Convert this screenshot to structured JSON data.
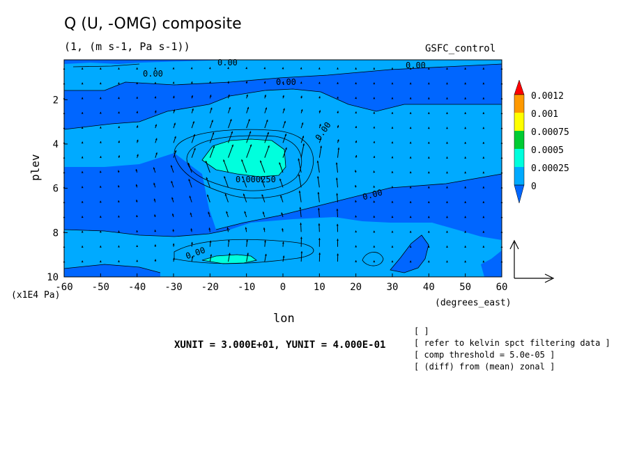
{
  "header": {
    "title": "Q (U, -OMG) composite",
    "subtitle": "(1, (m s-1, Pa s-1))",
    "dataset": "GSFC_control"
  },
  "notes": [
    "[  ]",
    "[ refer to kelvin spct filtering data ]",
    "[ comp threshold = 5.0e-05 ]",
    "[ (diff) from (mean) zonal ]"
  ],
  "units_line": "XUNIT = 3.000E+01, YUNIT = 4.000E-01",
  "chart_data": {
    "type": "heatmap",
    "title": "Q (U, -OMG) composite",
    "xlabel": "lon",
    "x_units": "(degrees_east)",
    "ylabel": "plev",
    "y_units": "(x1E4 Pa)",
    "xlim": [
      -60,
      60
    ],
    "ylim": [
      10,
      0.2
    ],
    "x_ticks": [
      -60,
      -50,
      -40,
      -30,
      -20,
      -10,
      0,
      10,
      20,
      30,
      40,
      50,
      60
    ],
    "y_ticks": [
      2,
      4,
      6,
      8,
      10
    ],
    "colorbar": {
      "levels": [
        "0.0012",
        "0.001",
        "0.00075",
        "0.0005",
        "0.00025",
        "0"
      ],
      "colors": [
        "#ff0000",
        "#ff9900",
        "#ffff00",
        "#00cc33",
        "#00ffdd",
        "#00aaff",
        "#0066ff",
        "#0033ff"
      ]
    },
    "contour_labels": [
      "0.00",
      "0.00",
      "0.00",
      "0.00",
      "0.00",
      "0.000250",
      "0.00",
      "0.00"
    ],
    "approx_max_regions": [
      {
        "lon": -10,
        "plev": 4.8,
        "value": 0.0003
      },
      {
        "lon": -15,
        "plev": 9.3,
        "value": 0.00025
      }
    ],
    "vector_reference": {
      "x_unit": 30,
      "y_unit": 0.4
    }
  }
}
